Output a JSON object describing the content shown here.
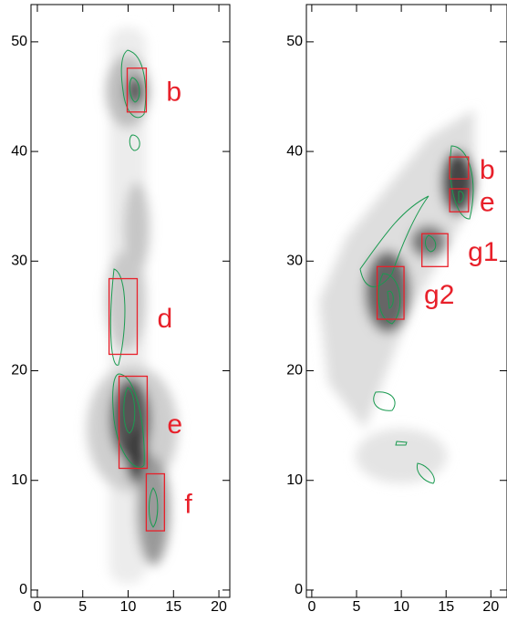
{
  "chart_data": [
    {
      "type": "image",
      "xlim": [
        -0.7,
        21.2
      ],
      "ylim": [
        -0.67,
        53.4
      ],
      "xticks": [
        0,
        5,
        10,
        15,
        20
      ],
      "yticks": [
        0,
        10,
        20,
        30,
        40,
        50
      ],
      "box_color": "#e8202a",
      "regions": [
        {
          "label": "b",
          "x": [
            9.9,
            12.0
          ],
          "y": [
            43.6,
            47.6
          ]
        },
        {
          "label": "d",
          "x": [
            7.9,
            11.0
          ],
          "y": [
            21.5,
            28.4
          ]
        },
        {
          "label": "e",
          "x": [
            9.0,
            12.1
          ],
          "y": [
            11.1,
            19.5
          ]
        },
        {
          "label": "f",
          "x": [
            12.0,
            14.0
          ],
          "y": [
            5.4,
            10.6
          ]
        }
      ]
    },
    {
      "type": "image",
      "xlim": [
        -0.6,
        21.8
      ],
      "ylim": [
        -0.67,
        53.4
      ],
      "xticks": [
        0,
        5,
        10,
        15,
        20
      ],
      "yticks": [
        0,
        10,
        20,
        30,
        40,
        50
      ],
      "box_color": "#e8202a",
      "regions": [
        {
          "label": "b",
          "x": [
            15.4,
            17.5
          ],
          "y": [
            37.5,
            39.5
          ]
        },
        {
          "label": "e",
          "x": [
            15.4,
            17.5
          ],
          "y": [
            34.5,
            36.6
          ]
        },
        {
          "label": "g1",
          "x": [
            12.3,
            15.2
          ],
          "y": [
            29.5,
            32.5
          ]
        },
        {
          "label": "g2",
          "x": [
            7.3,
            10.3
          ],
          "y": [
            24.7,
            29.5
          ]
        }
      ]
    }
  ]
}
